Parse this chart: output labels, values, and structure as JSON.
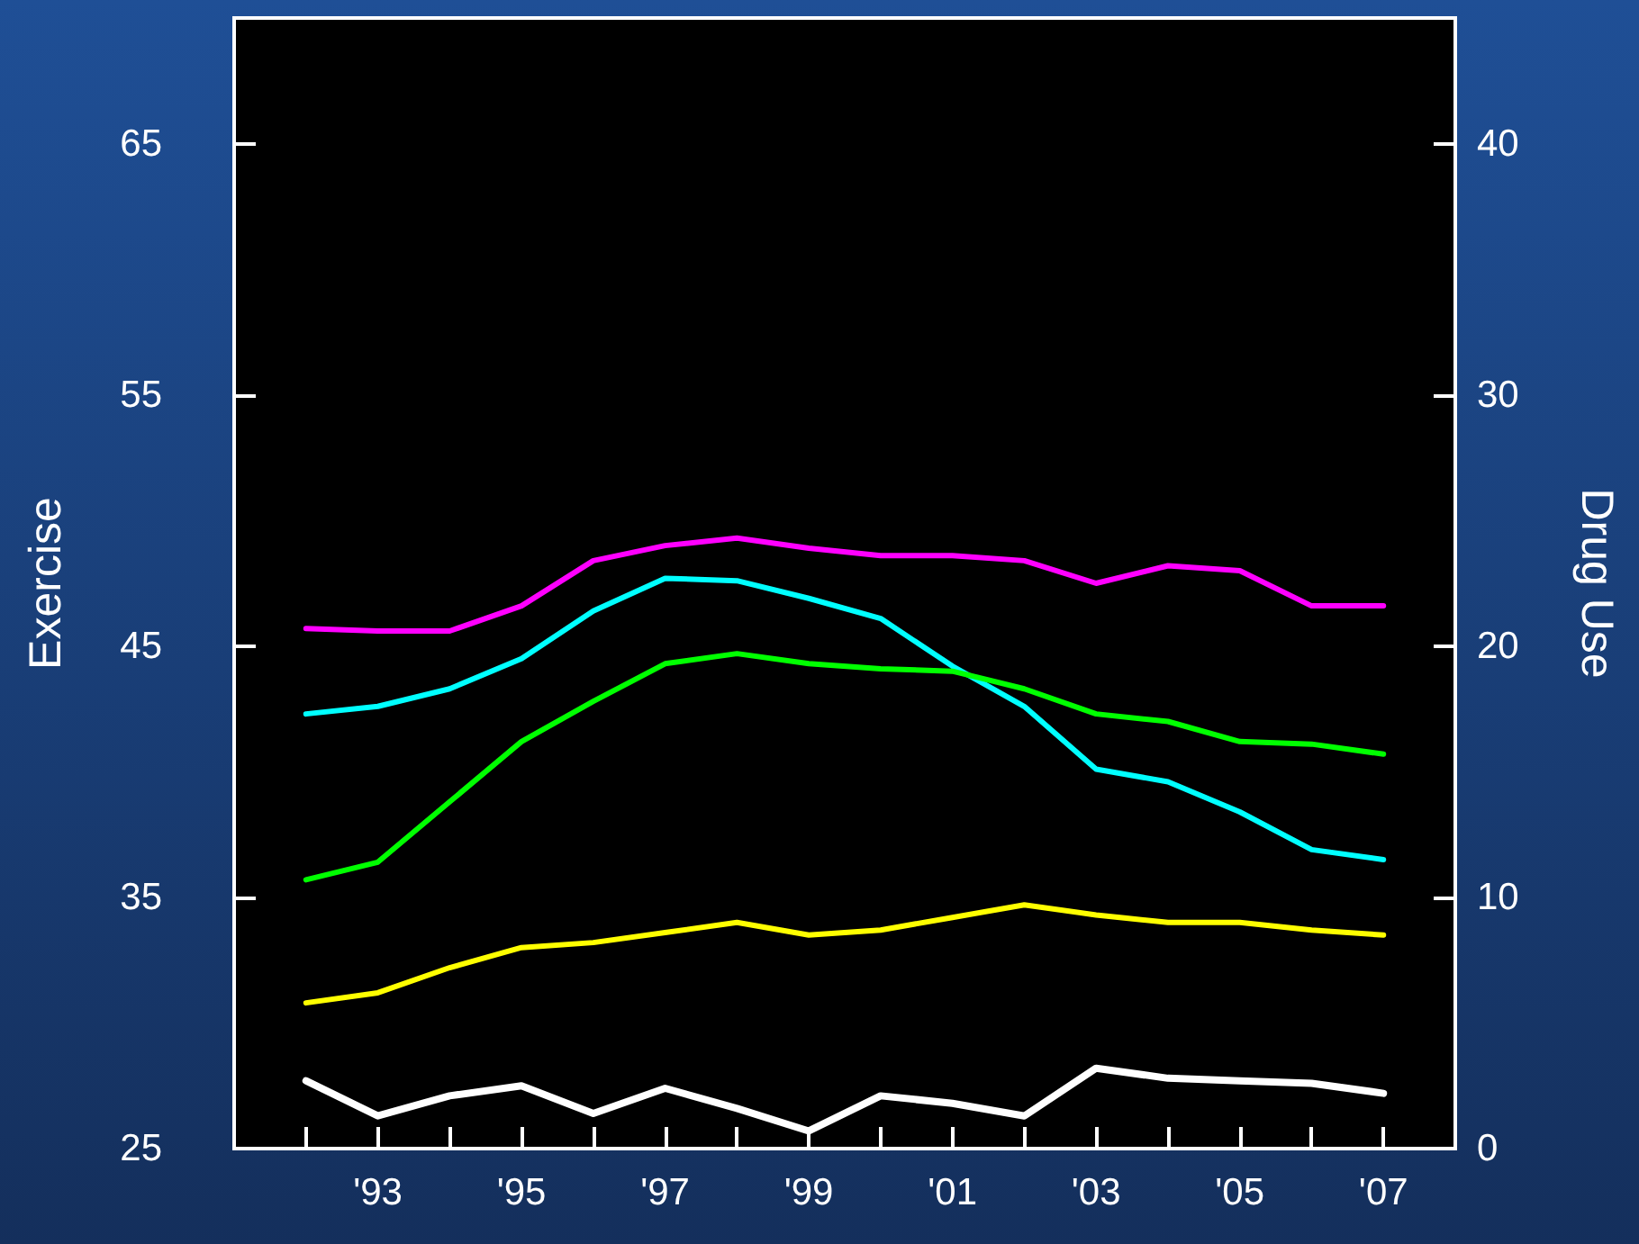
{
  "chart_data": {
    "type": "line",
    "ylabel": "Exercise",
    "y2label": "Drug Use",
    "x": [
      1992,
      1993,
      1994,
      1995,
      1996,
      1997,
      1998,
      1999,
      2000,
      2001,
      2002,
      2003,
      2004,
      2005,
      2006,
      2007
    ],
    "xlim": [
      1991,
      2008
    ],
    "xticks": [
      {
        "value": 1992,
        "label": null
      },
      {
        "value": 1993,
        "label": "'93"
      },
      {
        "value": 1994,
        "label": null
      },
      {
        "value": 1995,
        "label": "'95"
      },
      {
        "value": 1996,
        "label": null
      },
      {
        "value": 1997,
        "label": "'97"
      },
      {
        "value": 1998,
        "label": null
      },
      {
        "value": 1999,
        "label": "'99"
      },
      {
        "value": 2000,
        "label": null
      },
      {
        "value": 2001,
        "label": "'01"
      },
      {
        "value": 2002,
        "label": null
      },
      {
        "value": 2003,
        "label": "'03"
      },
      {
        "value": 2004,
        "label": null
      },
      {
        "value": 2005,
        "label": "'05"
      },
      {
        "value": 2006,
        "label": null
      },
      {
        "value": 2007,
        "label": "'07"
      }
    ],
    "ylim": [
      25,
      70
    ],
    "yticks": [
      25,
      35,
      45,
      55,
      65
    ],
    "y2lim": [
      0,
      45
    ],
    "y2ticks": [
      0,
      10,
      20,
      30,
      40
    ],
    "grid": false,
    "marker": "none",
    "line_style": "solid",
    "series": [
      {
        "color": "#ff00ff",
        "values": [
          45.7,
          45.6,
          45.6,
          46.6,
          48.4,
          49.0,
          49.3,
          48.9,
          48.6,
          48.6,
          48.4,
          47.5,
          48.2,
          48.0,
          46.6,
          46.6
        ]
      },
      {
        "color": "#00ffff",
        "values": [
          42.3,
          42.6,
          43.3,
          44.5,
          46.4,
          47.7,
          47.6,
          46.9,
          46.1,
          44.2,
          42.6,
          40.1,
          39.6,
          38.4,
          36.9,
          36.5
        ]
      },
      {
        "color": "#00ff00",
        "values": [
          35.7,
          36.4,
          38.8,
          41.2,
          42.8,
          44.3,
          44.7,
          44.3,
          44.1,
          44.0,
          43.3,
          42.3,
          42.0,
          41.2,
          41.1,
          40.7
        ]
      },
      {
        "color": "#ffff00",
        "values": [
          30.8,
          31.2,
          32.2,
          33.0,
          33.2,
          33.6,
          34.0,
          33.5,
          33.7,
          34.2,
          34.7,
          34.3,
          34.0,
          34.0,
          33.7,
          33.5
        ]
      },
      {
        "color": "#ffffff",
        "values": [
          27.7,
          26.3,
          27.1,
          27.5,
          26.4,
          27.4,
          26.6,
          25.7,
          27.1,
          26.8,
          26.3,
          28.2,
          27.8,
          27.7,
          27.6,
          27.2
        ]
      }
    ]
  }
}
